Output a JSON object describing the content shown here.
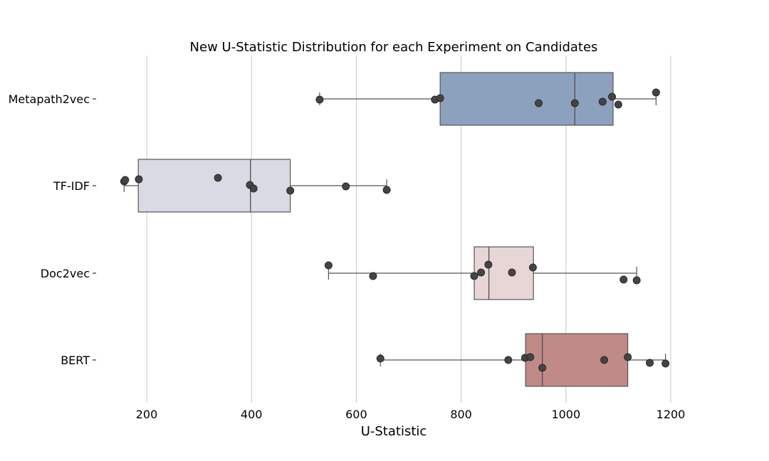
{
  "chart_data": {
    "type": "box",
    "orientation": "horizontal",
    "title": "New U-Statistic Distribution for each Experiment on Candidates",
    "xlabel": "U-Statistic",
    "ylabel": "",
    "xlim": [
      150,
      1200
    ],
    "xticks": [
      200,
      400,
      600,
      800,
      1000,
      1200
    ],
    "grid": "vertical",
    "categories": [
      "Metapath2vec",
      "TF-IDF",
      "Doc2vec",
      "BERT"
    ],
    "colors": [
      "#8ca1be",
      "#d8dbe3",
      "#e8d6d6",
      "#c08a86"
    ],
    "boxes": [
      {
        "name": "Metapath2vec",
        "whislo": 530,
        "q1": 760,
        "med": 1017,
        "q3": 1090,
        "whishi": 1172
      },
      {
        "name": "TF-IDF",
        "whislo": 157,
        "q1": 184,
        "med": 398,
        "q3": 474,
        "whishi": 658
      },
      {
        "name": "Doc2vec",
        "whislo": 547,
        "q1": 825,
        "med": 853,
        "q3": 938,
        "whishi": 1135
      },
      {
        "name": "BERT",
        "whislo": 646,
        "q1": 923,
        "med": 955,
        "q3": 1118,
        "whishi": 1190
      }
    ],
    "points": [
      [
        530,
        750,
        760,
        948,
        1017,
        1070,
        1088,
        1100,
        1172
      ],
      [
        157,
        159,
        185,
        336,
        397,
        404,
        474,
        580,
        658
      ],
      [
        547,
        632,
        825,
        838,
        852,
        897,
        937,
        1110,
        1135
      ],
      [
        646,
        890,
        922,
        932,
        955,
        1073,
        1118,
        1160,
        1190
      ]
    ]
  }
}
